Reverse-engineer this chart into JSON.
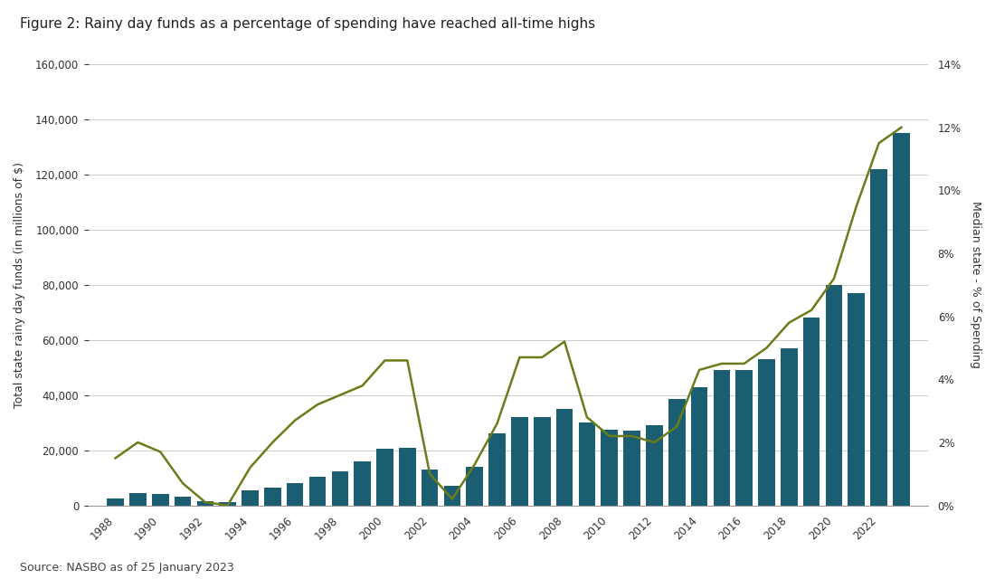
{
  "title": "Figure 2: Rainy day funds as a percentage of spending have reached all-time highs",
  "source": "Source: NASBO as of 25 January 2023",
  "ylabel_left": "Total state rainy day funds (in millions of $)",
  "ylabel_right": "Median state - % of Spending",
  "bar_color": "#1B5E72",
  "line_color": "#6B7C1A",
  "background_color": "#ffffff",
  "plot_bg_color": "#ffffff",
  "grid_color": "#cccccc",
  "years": [
    1988,
    1989,
    1990,
    1991,
    1992,
    1993,
    1994,
    1995,
    1996,
    1997,
    1998,
    1999,
    2000,
    2001,
    2002,
    2003,
    2004,
    2005,
    2006,
    2007,
    2008,
    2009,
    2010,
    2011,
    2012,
    2013,
    2014,
    2015,
    2016,
    2017,
    2018,
    2019,
    2020,
    2021,
    2022,
    2023
  ],
  "bar_values": [
    2500,
    4500,
    4200,
    3000,
    1500,
    1200,
    5500,
    6500,
    8000,
    10500,
    12500,
    16000,
    20500,
    21000,
    13000,
    7000,
    14000,
    26000,
    32000,
    32000,
    35000,
    30000,
    27500,
    27000,
    29000,
    38500,
    43000,
    49000,
    49000,
    53000,
    57000,
    68000,
    80000,
    77000,
    122000,
    135000
  ],
  "line_values": [
    1.5,
    2.0,
    1.7,
    0.7,
    0.1,
    0.0,
    1.2,
    2.0,
    2.7,
    3.2,
    3.5,
    3.8,
    4.6,
    4.6,
    1.0,
    0.2,
    1.3,
    2.6,
    4.7,
    4.7,
    5.2,
    2.8,
    2.2,
    2.2,
    2.0,
    2.5,
    4.3,
    4.5,
    4.5,
    5.0,
    5.8,
    6.2,
    7.2,
    9.5,
    11.5,
    12.0
  ],
  "ylim_left": [
    0,
    160000
  ],
  "ylim_right": [
    0,
    14
  ],
  "yticks_left": [
    0,
    20000,
    40000,
    60000,
    80000,
    100000,
    120000,
    140000,
    160000
  ],
  "yticks_right": [
    0,
    2,
    4,
    6,
    8,
    10,
    12,
    14
  ],
  "title_fontsize": 11,
  "axis_label_fontsize": 9,
  "tick_fontsize": 8.5,
  "source_fontsize": 9
}
